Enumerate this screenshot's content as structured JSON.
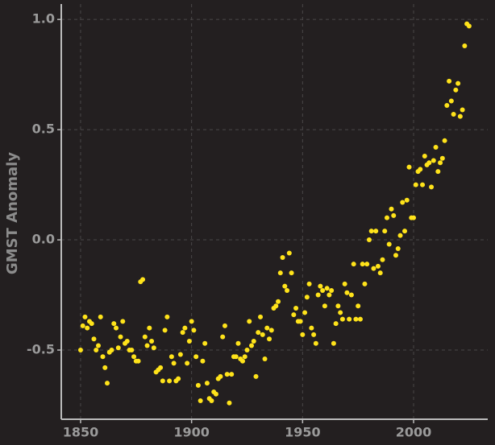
{
  "chart_data": {
    "type": "scatter",
    "ylabel": "GMST Anomaly",
    "color": "#ffe31a",
    "grid": true,
    "xlim": [
      1841.3,
      2033.4
    ],
    "ylim": [
      -0.814,
      1.07
    ],
    "xticks": [
      1850,
      1900,
      1950,
      2000
    ],
    "yticks": [
      {
        "value": -0.5,
        "label": "-0.5"
      },
      {
        "value": 0,
        "label": "0.0"
      },
      {
        "value": 0.5,
        "label": "0.5"
      },
      {
        "value": 1,
        "label": "1.0"
      }
    ],
    "x": [
      1850,
      1851,
      1852,
      1853,
      1854,
      1855,
      1856,
      1857,
      1858,
      1859,
      1860,
      1861,
      1862,
      1863,
      1864,
      1865,
      1866,
      1867,
      1868,
      1869,
      1870,
      1871,
      1872,
      1873,
      1874,
      1875,
      1876,
      1877,
      1878,
      1879,
      1880,
      1881,
      1882,
      1883,
      1884,
      1885,
      1886,
      1887,
      1888,
      1889,
      1890,
      1891,
      1892,
      1893,
      1894,
      1895,
      1896,
      1897,
      1898,
      1899,
      1900,
      1901,
      1902,
      1903,
      1904,
      1905,
      1906,
      1907,
      1908,
      1909,
      1910,
      1911,
      1912,
      1913,
      1914,
      1915,
      1916,
      1917,
      1918,
      1919,
      1920,
      1921,
      1922,
      1923,
      1924,
      1925,
      1926,
      1927,
      1928,
      1929,
      1930,
      1931,
      1932,
      1933,
      1934,
      1935,
      1936,
      1937,
      1938,
      1939,
      1940,
      1941,
      1942,
      1943,
      1944,
      1945,
      1946,
      1947,
      1948,
      1949,
      1950,
      1951,
      1952,
      1953,
      1954,
      1955,
      1956,
      1957,
      1958,
      1959,
      1960,
      1961,
      1962,
      1963,
      1964,
      1965,
      1966,
      1967,
      1968,
      1969,
      1970,
      1971,
      1972,
      1973,
      1974,
      1975,
      1976,
      1977,
      1978,
      1979,
      1980,
      1981,
      1982,
      1983,
      1984,
      1985,
      1986,
      1987,
      1988,
      1989,
      1990,
      1991,
      1992,
      1993,
      1994,
      1995,
      1996,
      1997,
      1998,
      1999,
      2000,
      2001,
      2002,
      2003,
      2004,
      2005,
      2006,
      2007,
      2008,
      2009,
      2010,
      2011,
      2012,
      2013,
      2014,
      2015,
      2016,
      2017,
      2018,
      2019,
      2020,
      2021,
      2022,
      2023,
      2024,
      2025
    ],
    "values": [
      -0.5,
      -0.39,
      -0.35,
      -0.4,
      -0.37,
      -0.38,
      -0.45,
      -0.5,
      -0.48,
      -0.35,
      -0.53,
      -0.58,
      -0.65,
      -0.51,
      -0.5,
      -0.38,
      -0.4,
      -0.49,
      -0.44,
      -0.37,
      -0.47,
      -0.46,
      -0.5,
      -0.5,
      -0.53,
      -0.55,
      -0.55,
      -0.19,
      -0.18,
      -0.44,
      -0.48,
      -0.4,
      -0.46,
      -0.49,
      -0.6,
      -0.59,
      -0.58,
      -0.64,
      -0.41,
      -0.35,
      -0.64,
      -0.53,
      -0.56,
      -0.64,
      -0.63,
      -0.52,
      -0.42,
      -0.4,
      -0.56,
      -0.46,
      -0.37,
      -0.41,
      -0.53,
      -0.66,
      -0.73,
      -0.55,
      -0.47,
      -0.65,
      -0.72,
      -0.73,
      -0.69,
      -0.7,
      -0.63,
      -0.62,
      -0.44,
      -0.39,
      -0.61,
      -0.74,
      -0.61,
      -0.53,
      -0.53,
      -0.47,
      -0.54,
      -0.55,
      -0.53,
      -0.5,
      -0.37,
      -0.48,
      -0.46,
      -0.62,
      -0.42,
      -0.35,
      -0.43,
      -0.54,
      -0.4,
      -0.45,
      -0.41,
      -0.31,
      -0.3,
      -0.28,
      -0.15,
      -0.08,
      -0.21,
      -0.23,
      -0.06,
      -0.15,
      -0.34,
      -0.31,
      -0.37,
      -0.37,
      -0.43,
      -0.33,
      -0.26,
      -0.2,
      -0.4,
      -0.43,
      -0.47,
      -0.25,
      -0.21,
      -0.23,
      -0.3,
      -0.22,
      -0.25,
      -0.23,
      -0.47,
      -0.38,
      -0.3,
      -0.33,
      -0.36,
      -0.2,
      -0.24,
      -0.36,
      -0.25,
      -0.11,
      -0.36,
      -0.3,
      -0.36,
      -0.11,
      -0.2,
      -0.11,
      0.0,
      0.04,
      -0.13,
      0.04,
      -0.12,
      -0.15,
      -0.09,
      0.04,
      0.1,
      -0.02,
      0.14,
      0.11,
      -0.07,
      -0.04,
      0.02,
      0.17,
      0.04,
      0.18,
      0.33,
      0.1,
      0.1,
      0.25,
      0.31,
      0.32,
      0.25,
      0.38,
      0.34,
      0.35,
      0.24,
      0.36,
      0.42,
      0.31,
      0.35,
      0.37,
      0.45,
      0.61,
      0.72,
      0.63,
      0.57,
      0.68,
      0.71,
      0.56,
      0.59,
      0.88,
      0.98,
      0.97
    ]
  }
}
